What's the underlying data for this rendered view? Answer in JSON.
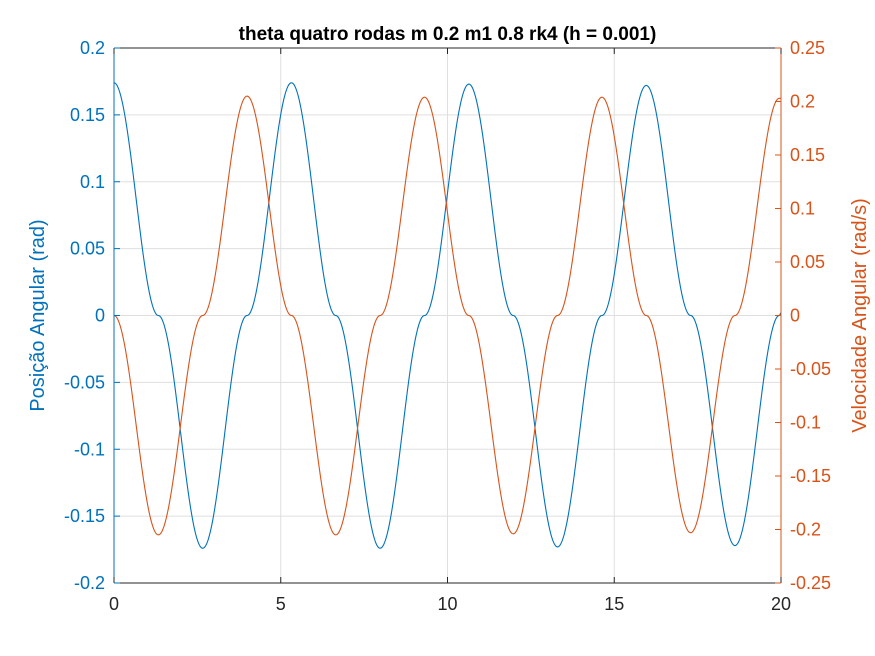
{
  "chart_data": {
    "type": "line",
    "title": "theta quatro rodas m 0.2 m1 0.8 rk4 (h = 0.001)",
    "xlabel": "",
    "xlim": [
      0,
      20
    ],
    "x_ticks": [
      "0",
      "5",
      "10",
      "15",
      "20"
    ],
    "grid": true,
    "left_axis": {
      "label": "Posição Angular (rad)",
      "ylim": [
        -0.2,
        0.2
      ],
      "ticks": [
        "-0.2",
        "-0.15",
        "-0.1",
        "-0.05",
        "0",
        "0.05",
        "0.1",
        "0.15",
        "0.2"
      ],
      "color": "#0072BD"
    },
    "right_axis": {
      "label": "Velocidade Angular (rad/s)",
      "ylim": [
        -0.25,
        0.25
      ],
      "ticks": [
        "-0.25",
        "-0.2",
        "-0.15",
        "-0.1",
        "-0.05",
        "0",
        "0.05",
        "0.1",
        "0.15",
        "0.2",
        "0.25"
      ],
      "color": "#D95319"
    },
    "series": [
      {
        "axis": "left",
        "color": "#0072BD",
        "x": [
          0,
          1.33,
          2.66,
          3.99,
          5.32,
          6.65,
          7.98,
          9.31,
          10.64,
          11.97,
          13.3,
          14.63,
          15.96,
          17.29,
          18.62,
          19.95,
          20
        ],
        "y": [
          0.174,
          0,
          -0.174,
          0,
          0.174,
          0,
          -0.174,
          0,
          0.173,
          0,
          -0.173,
          0,
          0.172,
          0,
          -0.172,
          0,
          0.002
        ]
      },
      {
        "axis": "right",
        "color": "#D95319",
        "x": [
          0,
          1.33,
          2.66,
          3.99,
          5.32,
          6.65,
          7.98,
          9.31,
          10.64,
          11.97,
          13.3,
          14.63,
          15.96,
          17.29,
          18.62,
          19.95,
          20
        ],
        "y": [
          0,
          -0.205,
          0,
          0.205,
          0,
          -0.205,
          0,
          0.204,
          0,
          -0.204,
          0,
          0.204,
          0,
          -0.203,
          0,
          0.203,
          0.203
        ]
      }
    ]
  }
}
